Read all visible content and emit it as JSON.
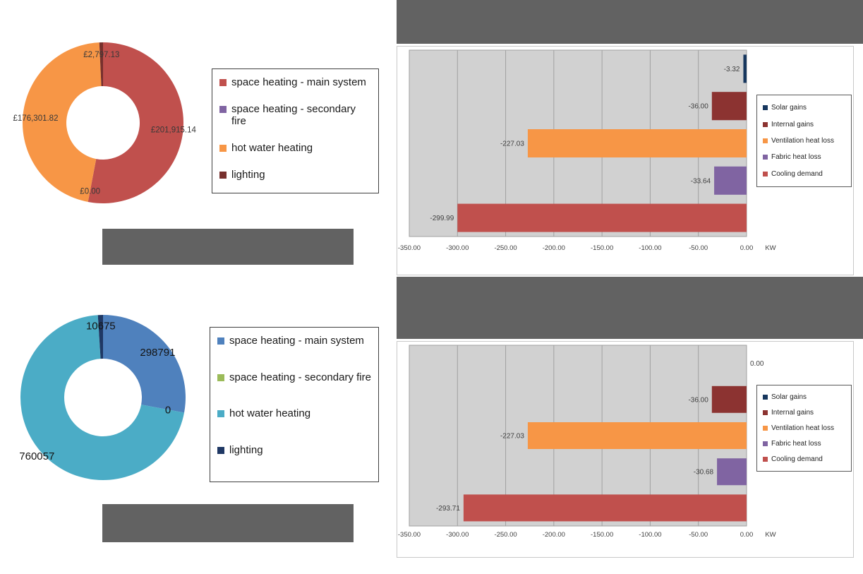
{
  "colors": {
    "redaction_gray": "#626262",
    "plot_bg": "#d1d1d1",
    "gridline": "#a0a0a0",
    "chart_border": "#c9c9c9",
    "value_label_text": "#3f3f3f"
  },
  "chart_data": [
    {
      "id": "fuel-cost-doughnut",
      "type": "pie",
      "subtype": "doughnut",
      "legend_position": "right",
      "categories": [
        "space heating - main system",
        "space heating - secondary fire",
        "hot water heating",
        "lighting"
      ],
      "values": [
        201915.14,
        0,
        176301.82,
        2797.13
      ],
      "data_labels": [
        "£201,915.14",
        "£0.00",
        "£176,301.82",
        "£2,797.13"
      ],
      "colors": [
        "#c0504d",
        "#8064a2",
        "#f79646",
        "#77302d"
      ]
    },
    {
      "id": "heat-balance-bar-top",
      "type": "bar",
      "orientation": "horizontal",
      "categories": [
        "Solar gains",
        "Internal gains",
        "Ventilation heat loss",
        "Fabric heat loss",
        "Cooling demand"
      ],
      "values": [
        -3.32,
        -36.0,
        -227.03,
        -33.64,
        -299.99
      ],
      "data_labels": [
        "-3.32",
        "-36.00",
        "-227.03",
        "-33.64",
        "-299.99"
      ],
      "colors": [
        "#17375e",
        "#8c3331",
        "#f79646",
        "#8064a2",
        "#c0504d"
      ],
      "legend": [
        "Solar gains",
        "Internal gains",
        "Ventilation heat loss",
        "Fabric heat loss",
        "Cooling demand"
      ],
      "legend_position": "right",
      "grid": true,
      "xlim": [
        -350,
        0
      ],
      "x_ticks": [
        "-350.00",
        "-300.00",
        "-250.00",
        "-200.00",
        "-150.00",
        "-100.00",
        "-50.00",
        "0.00"
      ],
      "x_unit": "KW"
    },
    {
      "id": "energy-use-doughnut",
      "type": "pie",
      "subtype": "doughnut",
      "legend_position": "right",
      "categories": [
        "space heating - main system",
        "space heating - secondary fire",
        "hot water heating",
        "lighting"
      ],
      "values": [
        298791,
        0,
        760057,
        10675
      ],
      "data_labels": [
        "298791",
        "0",
        "760057",
        "10675"
      ],
      "colors": [
        "#4f81bd",
        "#9bbb59",
        "#4bacc6",
        "#1f3864"
      ]
    },
    {
      "id": "heat-balance-bar-bottom",
      "type": "bar",
      "orientation": "horizontal",
      "categories": [
        "Solar gains",
        "Internal gains",
        "Ventilation heat loss",
        "Fabric heat loss",
        "Cooling demand"
      ],
      "values": [
        0,
        -36.0,
        -227.03,
        -30.68,
        -293.71
      ],
      "data_labels": [
        "0.00",
        "-36.00",
        "-227.03",
        "-30.68",
        "-293.71"
      ],
      "colors": [
        "#17375e",
        "#8c3331",
        "#f79646",
        "#8064a2",
        "#c0504d"
      ],
      "legend": [
        "Solar gains",
        "Internal gains",
        "Ventilation heat loss",
        "Fabric heat loss",
        "Cooling demand"
      ],
      "legend_position": "right",
      "grid": true,
      "xlim": [
        -350,
        0
      ],
      "x_ticks": [
        "-350.00",
        "-300.00",
        "-250.00",
        "-200.00",
        "-150.00",
        "-100.00",
        "-50.00",
        "0.00"
      ],
      "x_unit": "KW"
    }
  ]
}
